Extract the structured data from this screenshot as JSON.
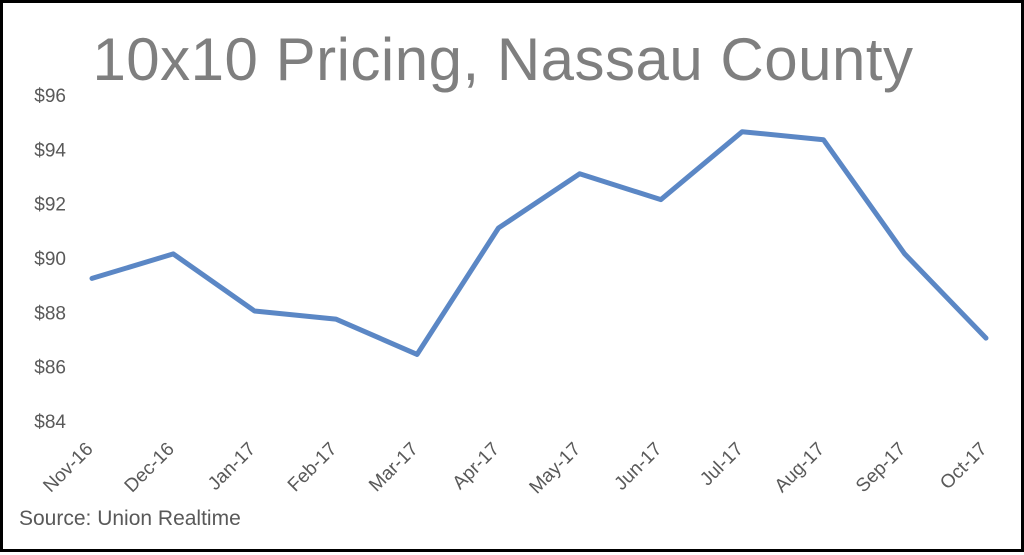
{
  "chart_data": {
    "type": "line",
    "title": "10x10 Pricing, Nassau County",
    "source": "Source: Union Realtime",
    "categories": [
      "Nov-16",
      "Dec-16",
      "Jan-17",
      "Feb-17",
      "Mar-17",
      "Apr-17",
      "May-17",
      "Jun-17",
      "Jul-17",
      "Aug-17",
      "Sep-17",
      "Oct-17"
    ],
    "series": [
      {
        "values": [
          89.25,
          90.15,
          88.05,
          87.75,
          86.45,
          91.1,
          93.1,
          92.15,
          94.65,
          94.35,
          90.15,
          87.05
        ],
        "color": "#5b87c5"
      }
    ],
    "yticks": [
      "$84",
      "$86",
      "$88",
      "$90",
      "$92",
      "$94",
      "$96"
    ],
    "ylim": [
      84,
      96
    ],
    "grid": false,
    "legend": false
  }
}
